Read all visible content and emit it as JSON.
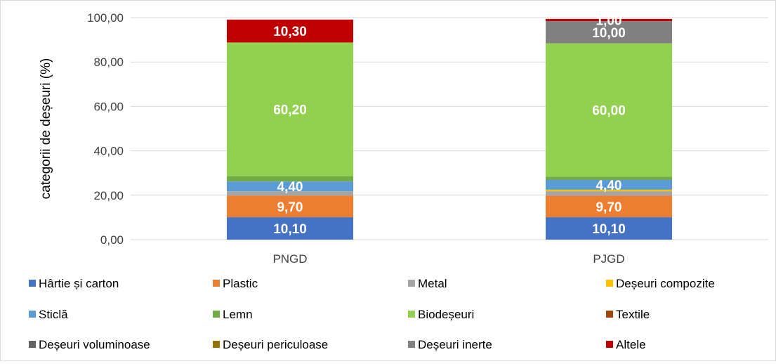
{
  "chart_data": {
    "type": "bar",
    "stacked": true,
    "categories": [
      "PNGD",
      "PJGD"
    ],
    "ylabel": "categorii de deșeuri (%)",
    "ylim": [
      0,
      100
    ],
    "yticks": [
      "0,00",
      "20,00",
      "40,00",
      "60,00",
      "80,00",
      "100,00"
    ],
    "grid": true,
    "legend_position": "bottom",
    "series": [
      {
        "name": "Hârtie și carton",
        "color": "#4472c4",
        "values": [
          10.1,
          10.1
        ],
        "labels": [
          "10,10",
          "10,10"
        ]
      },
      {
        "name": "Plastic",
        "color": "#ed7d31",
        "values": [
          9.7,
          9.7
        ],
        "labels": [
          "9,70",
          "9,70"
        ]
      },
      {
        "name": "Metal",
        "color": "#a5a5a5",
        "values": [
          2.0,
          2.0
        ],
        "labels": [
          "",
          ""
        ]
      },
      {
        "name": "Deșeuri compozite",
        "color": "#ffc000",
        "values": [
          0.0,
          0.7
        ],
        "labels": [
          "",
          ""
        ]
      },
      {
        "name": "Sticlă",
        "color": "#5b9bd5",
        "values": [
          4.4,
          4.4
        ],
        "labels": [
          "4,40",
          "4,40"
        ]
      },
      {
        "name": "Lemn",
        "color": "#70ad47",
        "values": [
          2.4,
          1.5
        ],
        "labels": [
          "",
          ""
        ]
      },
      {
        "name": "Biodeșeuri",
        "color": "#92d050",
        "values": [
          60.2,
          60.0
        ],
        "labels": [
          "60,20",
          "60,00"
        ]
      },
      {
        "name": "Textile",
        "color": "#9e480e",
        "values": [
          0.0,
          0.0
        ],
        "labels": [
          "",
          ""
        ]
      },
      {
        "name": "Deșeuri voluminoase",
        "color": "#636363",
        "values": [
          0.0,
          0.0
        ],
        "labels": [
          "",
          ""
        ]
      },
      {
        "name": "Deșeuri periculoase",
        "color": "#997300",
        "values": [
          0.0,
          0.0
        ],
        "labels": [
          "",
          ""
        ]
      },
      {
        "name": "Deșeuri inerte",
        "color": "#808080",
        "values": [
          0.0,
          10.0
        ],
        "labels": [
          "",
          "10,00"
        ]
      },
      {
        "name": "Altele",
        "color": "#c00000",
        "values": [
          10.3,
          1.0
        ],
        "labels": [
          "10,30",
          "1,00"
        ]
      }
    ]
  }
}
